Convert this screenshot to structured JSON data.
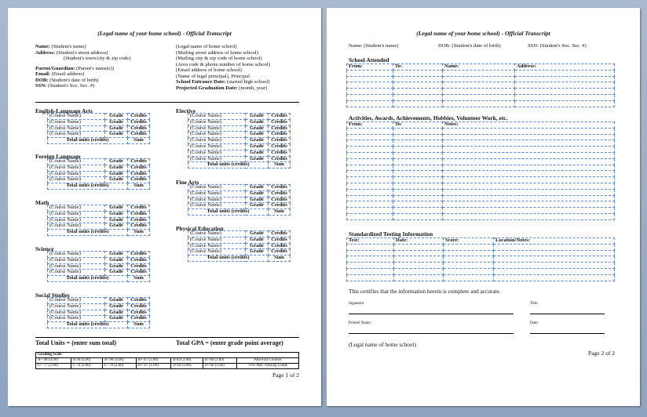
{
  "page1": {
    "title": "(Legal name of your home school) - Official Transcript",
    "left_header": [
      {
        "label": "Name:",
        "value": "(Student's name)"
      },
      {
        "label": "Address:",
        "value": "(Student's street address)"
      },
      {
        "label": "",
        "value": "(Student's town/city & zip code)"
      },
      {
        "label": "Parent/Guardian:",
        "value": "(Parent's name(s))"
      },
      {
        "label": "Email:",
        "value": "(Email address)"
      },
      {
        "label": "DOB:",
        "value": "(Student's date of birth)"
      },
      {
        "label": "SSN:",
        "value": "(Student's Soc. Sec. #)"
      }
    ],
    "right_header": [
      {
        "label": "",
        "value": "(Legal name of home school)"
      },
      {
        "label": "",
        "value": "(Mailing street address of home school)"
      },
      {
        "label": "",
        "value": "(Mailing city & zip code of home school)"
      },
      {
        "label": "",
        "value": "(Area code & phone number of home school)"
      },
      {
        "label": "",
        "value": "(Email address of home school)"
      },
      {
        "label": "",
        "value": "(Name of legal principal), Principal"
      },
      {
        "label": "School Entrance Date:",
        "value": "(started high school)"
      },
      {
        "label": "Projected Graduation Date:",
        "value": "(month, year)"
      }
    ],
    "course_cell": {
      "name": "(Course Name)",
      "grade": "Grade",
      "credits": "Credits",
      "total": "Total units (credits)",
      "sum": "Sum"
    },
    "sections_left": [
      {
        "title": "English-Language Arts",
        "rows": 4
      },
      {
        "title": "Foreign Language",
        "rows": 4
      },
      {
        "title": "Math",
        "rows": 4
      },
      {
        "title": "Science",
        "rows": 4
      },
      {
        "title": "Social Studies",
        "rows": 4
      }
    ],
    "sections_right": [
      {
        "title": "Elective",
        "rows": 8
      },
      {
        "title": "Fine Arts",
        "rows": 4
      },
      {
        "title": "Physical Education",
        "rows": 4
      }
    ],
    "total_units": "Total Units = (enter sum total)",
    "total_gpa": "Total GPA = (enter grade point average)",
    "grading_scale": {
      "title": "Grading Scale",
      "row1": [
        "A+ 98 (4.00)",
        "A 94 (4.00)",
        "A- 90 (4.00)",
        "B+ 87 (3.00)",
        "B 84 (3.00)",
        "B- 80 (3.00)"
      ],
      "row2": [
        "C+ 77 (2.00)",
        "C 74 (2.00)",
        "C- 70 (2.00)",
        "D+ 67 (1.00)",
        "D 64 (1.00)",
        "D- 60 (1.00)"
      ],
      "passfail": "Pass/Fail Courses",
      "passing": "70% Min. Passing Grade"
    },
    "page_number": "Page 1 of 2"
  },
  "page2": {
    "title": "(Legal name of your home school) - Official Transcript",
    "name": "Name: (Student's name)",
    "dob": "DOB: (Student's date of birth)",
    "ssn": "SSN: (Student's Soc. Sec. #)",
    "school_attended": {
      "title": "School Attended",
      "headers": [
        "From:",
        "To:",
        "Name:",
        "Address:"
      ]
    },
    "activities": {
      "title": "Activities, Awards, Achievements, Hobbies, Volunteer Work, etc.",
      "headers": [
        "From:",
        "To:",
        "Notes:"
      ]
    },
    "testing": {
      "title": "Standardized Testing Information",
      "headers": [
        "Test:",
        "Date:",
        "Score:",
        "Location/Notes:"
      ]
    },
    "certify": "This certifies that the information herein is complete and accurate.",
    "signature": "Signature:",
    "title_label": "Title:",
    "printed_name": "Printed Name:",
    "date": "Date:",
    "home_school": "(Legal name of home school)",
    "page_number": "Page 2 of 2"
  },
  "colors": {
    "background": "#8ea3c0",
    "table_border": "#5b8ad6"
  }
}
